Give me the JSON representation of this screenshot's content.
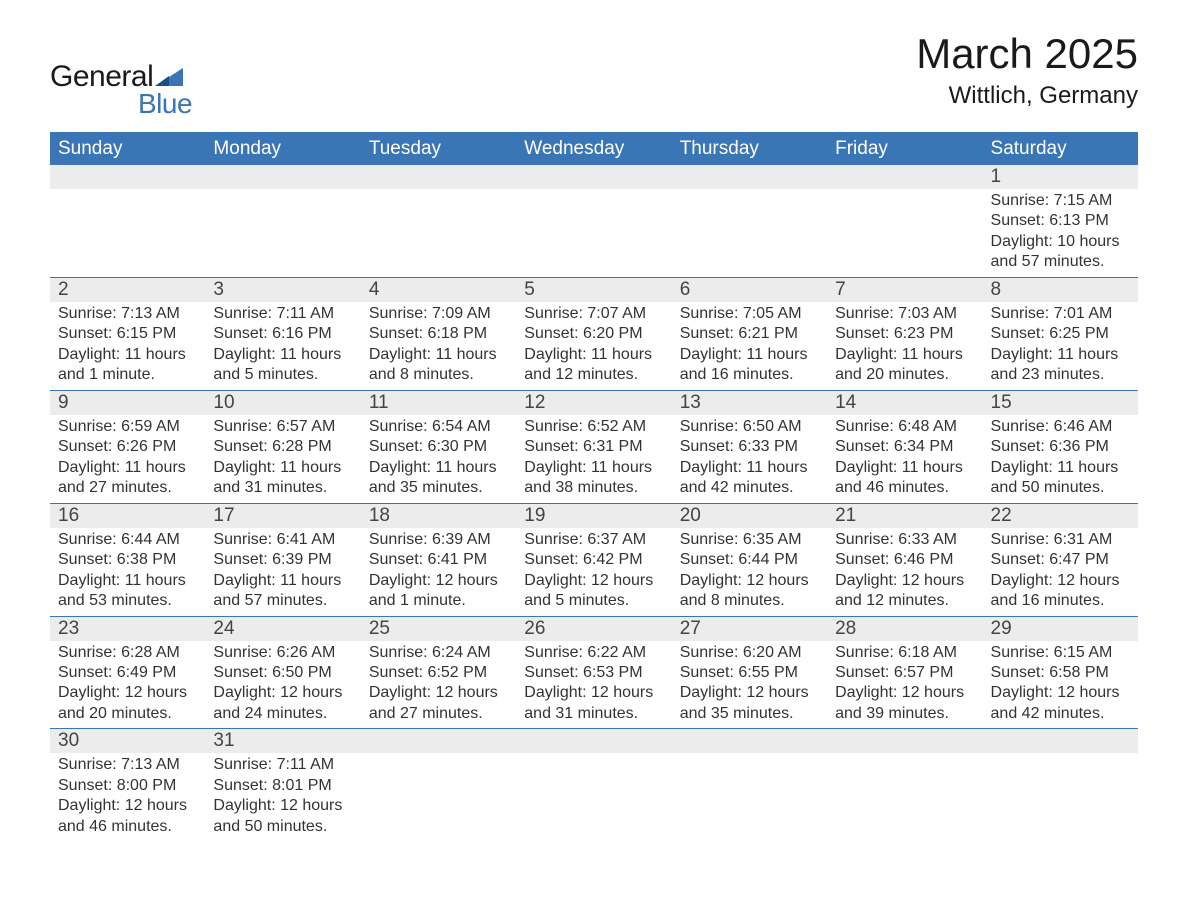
{
  "brand": {
    "general": "General",
    "blue": "Blue",
    "brand_color": "#3a75b5"
  },
  "title": {
    "month": "March 2025",
    "location": "Wittlich, Germany"
  },
  "colors": {
    "header_bg": "#3a75b5",
    "header_text": "#ffffff",
    "daynum_bg": "#ececec",
    "body_text": "#333333",
    "rule": "#3a75b5",
    "page_bg": "#ffffff"
  },
  "typography": {
    "title_fontsize_pt": 32,
    "location_fontsize_pt": 18,
    "header_fontsize_pt": 14,
    "daynum_fontsize_pt": 14,
    "body_fontsize_pt": 12,
    "font_family": "Arial"
  },
  "layout": {
    "columns": 7,
    "week_rows": 6,
    "first_day_column": 6,
    "days_in_month": 31
  },
  "headers": [
    "Sunday",
    "Monday",
    "Tuesday",
    "Wednesday",
    "Thursday",
    "Friday",
    "Saturday"
  ],
  "weeks": [
    {
      "nums": [
        "",
        "",
        "",
        "",
        "",
        "",
        "1"
      ],
      "cells": [
        {
          "l1": "",
          "l2": "",
          "l3": "",
          "l4": ""
        },
        {
          "l1": "",
          "l2": "",
          "l3": "",
          "l4": ""
        },
        {
          "l1": "",
          "l2": "",
          "l3": "",
          "l4": ""
        },
        {
          "l1": "",
          "l2": "",
          "l3": "",
          "l4": ""
        },
        {
          "l1": "",
          "l2": "",
          "l3": "",
          "l4": ""
        },
        {
          "l1": "",
          "l2": "",
          "l3": "",
          "l4": ""
        },
        {
          "l1": "Sunrise: 7:15 AM",
          "l2": "Sunset: 6:13 PM",
          "l3": "Daylight: 10 hours",
          "l4": "and 57 minutes."
        }
      ]
    },
    {
      "nums": [
        "2",
        "3",
        "4",
        "5",
        "6",
        "7",
        "8"
      ],
      "cells": [
        {
          "l1": "Sunrise: 7:13 AM",
          "l2": "Sunset: 6:15 PM",
          "l3": "Daylight: 11 hours",
          "l4": "and 1 minute."
        },
        {
          "l1": "Sunrise: 7:11 AM",
          "l2": "Sunset: 6:16 PM",
          "l3": "Daylight: 11 hours",
          "l4": "and 5 minutes."
        },
        {
          "l1": "Sunrise: 7:09 AM",
          "l2": "Sunset: 6:18 PM",
          "l3": "Daylight: 11 hours",
          "l4": "and 8 minutes."
        },
        {
          "l1": "Sunrise: 7:07 AM",
          "l2": "Sunset: 6:20 PM",
          "l3": "Daylight: 11 hours",
          "l4": "and 12 minutes."
        },
        {
          "l1": "Sunrise: 7:05 AM",
          "l2": "Sunset: 6:21 PM",
          "l3": "Daylight: 11 hours",
          "l4": "and 16 minutes."
        },
        {
          "l1": "Sunrise: 7:03 AM",
          "l2": "Sunset: 6:23 PM",
          "l3": "Daylight: 11 hours",
          "l4": "and 20 minutes."
        },
        {
          "l1": "Sunrise: 7:01 AM",
          "l2": "Sunset: 6:25 PM",
          "l3": "Daylight: 11 hours",
          "l4": "and 23 minutes."
        }
      ]
    },
    {
      "nums": [
        "9",
        "10",
        "11",
        "12",
        "13",
        "14",
        "15"
      ],
      "cells": [
        {
          "l1": "Sunrise: 6:59 AM",
          "l2": "Sunset: 6:26 PM",
          "l3": "Daylight: 11 hours",
          "l4": "and 27 minutes."
        },
        {
          "l1": "Sunrise: 6:57 AM",
          "l2": "Sunset: 6:28 PM",
          "l3": "Daylight: 11 hours",
          "l4": "and 31 minutes."
        },
        {
          "l1": "Sunrise: 6:54 AM",
          "l2": "Sunset: 6:30 PM",
          "l3": "Daylight: 11 hours",
          "l4": "and 35 minutes."
        },
        {
          "l1": "Sunrise: 6:52 AM",
          "l2": "Sunset: 6:31 PM",
          "l3": "Daylight: 11 hours",
          "l4": "and 38 minutes."
        },
        {
          "l1": "Sunrise: 6:50 AM",
          "l2": "Sunset: 6:33 PM",
          "l3": "Daylight: 11 hours",
          "l4": "and 42 minutes."
        },
        {
          "l1": "Sunrise: 6:48 AM",
          "l2": "Sunset: 6:34 PM",
          "l3": "Daylight: 11 hours",
          "l4": "and 46 minutes."
        },
        {
          "l1": "Sunrise: 6:46 AM",
          "l2": "Sunset: 6:36 PM",
          "l3": "Daylight: 11 hours",
          "l4": "and 50 minutes."
        }
      ]
    },
    {
      "nums": [
        "16",
        "17",
        "18",
        "19",
        "20",
        "21",
        "22"
      ],
      "cells": [
        {
          "l1": "Sunrise: 6:44 AM",
          "l2": "Sunset: 6:38 PM",
          "l3": "Daylight: 11 hours",
          "l4": "and 53 minutes."
        },
        {
          "l1": "Sunrise: 6:41 AM",
          "l2": "Sunset: 6:39 PM",
          "l3": "Daylight: 11 hours",
          "l4": "and 57 minutes."
        },
        {
          "l1": "Sunrise: 6:39 AM",
          "l2": "Sunset: 6:41 PM",
          "l3": "Daylight: 12 hours",
          "l4": "and 1 minute."
        },
        {
          "l1": "Sunrise: 6:37 AM",
          "l2": "Sunset: 6:42 PM",
          "l3": "Daylight: 12 hours",
          "l4": "and 5 minutes."
        },
        {
          "l1": "Sunrise: 6:35 AM",
          "l2": "Sunset: 6:44 PM",
          "l3": "Daylight: 12 hours",
          "l4": "and 8 minutes."
        },
        {
          "l1": "Sunrise: 6:33 AM",
          "l2": "Sunset: 6:46 PM",
          "l3": "Daylight: 12 hours",
          "l4": "and 12 minutes."
        },
        {
          "l1": "Sunrise: 6:31 AM",
          "l2": "Sunset: 6:47 PM",
          "l3": "Daylight: 12 hours",
          "l4": "and 16 minutes."
        }
      ]
    },
    {
      "nums": [
        "23",
        "24",
        "25",
        "26",
        "27",
        "28",
        "29"
      ],
      "cells": [
        {
          "l1": "Sunrise: 6:28 AM",
          "l2": "Sunset: 6:49 PM",
          "l3": "Daylight: 12 hours",
          "l4": "and 20 minutes."
        },
        {
          "l1": "Sunrise: 6:26 AM",
          "l2": "Sunset: 6:50 PM",
          "l3": "Daylight: 12 hours",
          "l4": "and 24 minutes."
        },
        {
          "l1": "Sunrise: 6:24 AM",
          "l2": "Sunset: 6:52 PM",
          "l3": "Daylight: 12 hours",
          "l4": "and 27 minutes."
        },
        {
          "l1": "Sunrise: 6:22 AM",
          "l2": "Sunset: 6:53 PM",
          "l3": "Daylight: 12 hours",
          "l4": "and 31 minutes."
        },
        {
          "l1": "Sunrise: 6:20 AM",
          "l2": "Sunset: 6:55 PM",
          "l3": "Daylight: 12 hours",
          "l4": "and 35 minutes."
        },
        {
          "l1": "Sunrise: 6:18 AM",
          "l2": "Sunset: 6:57 PM",
          "l3": "Daylight: 12 hours",
          "l4": "and 39 minutes."
        },
        {
          "l1": "Sunrise: 6:15 AM",
          "l2": "Sunset: 6:58 PM",
          "l3": "Daylight: 12 hours",
          "l4": "and 42 minutes."
        }
      ]
    },
    {
      "nums": [
        "30",
        "31",
        "",
        "",
        "",
        "",
        ""
      ],
      "cells": [
        {
          "l1": "Sunrise: 7:13 AM",
          "l2": "Sunset: 8:00 PM",
          "l3": "Daylight: 12 hours",
          "l4": "and 46 minutes."
        },
        {
          "l1": "Sunrise: 7:11 AM",
          "l2": "Sunset: 8:01 PM",
          "l3": "Daylight: 12 hours",
          "l4": "and 50 minutes."
        },
        {
          "l1": "",
          "l2": "",
          "l3": "",
          "l4": ""
        },
        {
          "l1": "",
          "l2": "",
          "l3": "",
          "l4": ""
        },
        {
          "l1": "",
          "l2": "",
          "l3": "",
          "l4": ""
        },
        {
          "l1": "",
          "l2": "",
          "l3": "",
          "l4": ""
        },
        {
          "l1": "",
          "l2": "",
          "l3": "",
          "l4": ""
        }
      ]
    }
  ]
}
